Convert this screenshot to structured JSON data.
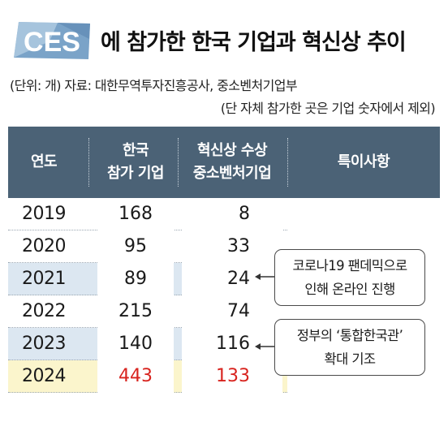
{
  "logo": {
    "text": "CES"
  },
  "title": "에 참가한 한국 기업과 혁신상 추이",
  "meta": {
    "line1": "(단위: 개) 자료: 대한무역투자진흥공사, 중소벤처기업부",
    "line2": "(단 자체 참가한 곳은 기업 숫자에서 제외)"
  },
  "table": {
    "headers": {
      "year": "연도",
      "korea_1": "한국",
      "korea_2": "참가 기업",
      "award_1": "혁신상 수상",
      "award_2": "중소벤처기업",
      "notes": "특이사항"
    },
    "rows": [
      {
        "year": "2019",
        "korea": "168",
        "award": "8"
      },
      {
        "year": "2020",
        "korea": "95",
        "award": "33"
      },
      {
        "year": "2021",
        "korea": "89",
        "award": "24"
      },
      {
        "year": "2022",
        "korea": "215",
        "award": "74"
      },
      {
        "year": "2023",
        "korea": "140",
        "award": "116"
      },
      {
        "year": "2024",
        "korea": "443",
        "award": "133"
      }
    ]
  },
  "notes": {
    "covid_1": "코로나19 팬데믹으로",
    "covid_2": "인해 온라인 진행",
    "gov_1": "정부의 ‘통합한국관’",
    "gov_2": "확대 기조"
  },
  "colors": {
    "header_bg": "#4b6276",
    "highlight_row": "#dce7f1",
    "current_year_row": "#fbf5cc",
    "accent_red": "#d8231e"
  }
}
